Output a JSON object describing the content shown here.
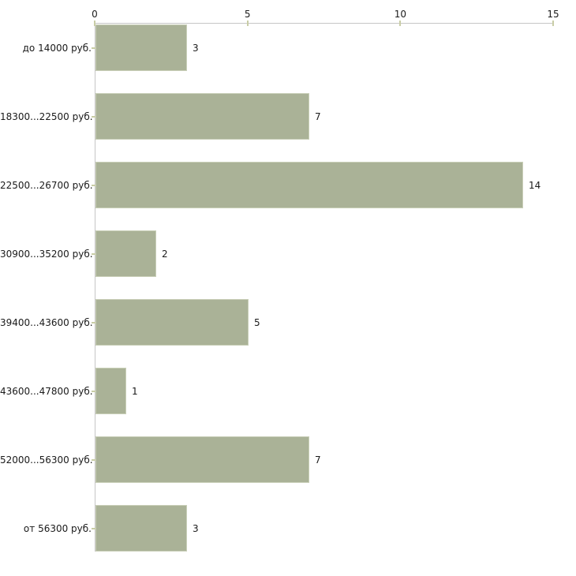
{
  "chart_data": {
    "type": "bar",
    "orientation": "horizontal",
    "title": "",
    "xlabel": "",
    "ylabel": "",
    "legend": "none",
    "grid": "off",
    "x_axis_position": "top",
    "categories": [
      "до 14000 руб.",
      "18300...22500 руб.",
      "22500...26700 руб.",
      "30900...35200 руб.",
      "39400...43600 руб.",
      "43600...47800 руб.",
      "52000...56300 руб.",
      "от 56300 руб."
    ],
    "values": [
      3,
      7,
      14,
      2,
      5,
      1,
      7,
      3
    ],
    "x_ticks": [
      0,
      5,
      10,
      15
    ],
    "xlim": [
      0,
      15
    ],
    "colors": {
      "bar_fill": "#aab297",
      "bar_border": "#c9cfb8",
      "axis_line": "#c6c6c6",
      "tick_mark": "#c9cda6",
      "text": "#1a1a1a",
      "background": "#ffffff"
    }
  }
}
